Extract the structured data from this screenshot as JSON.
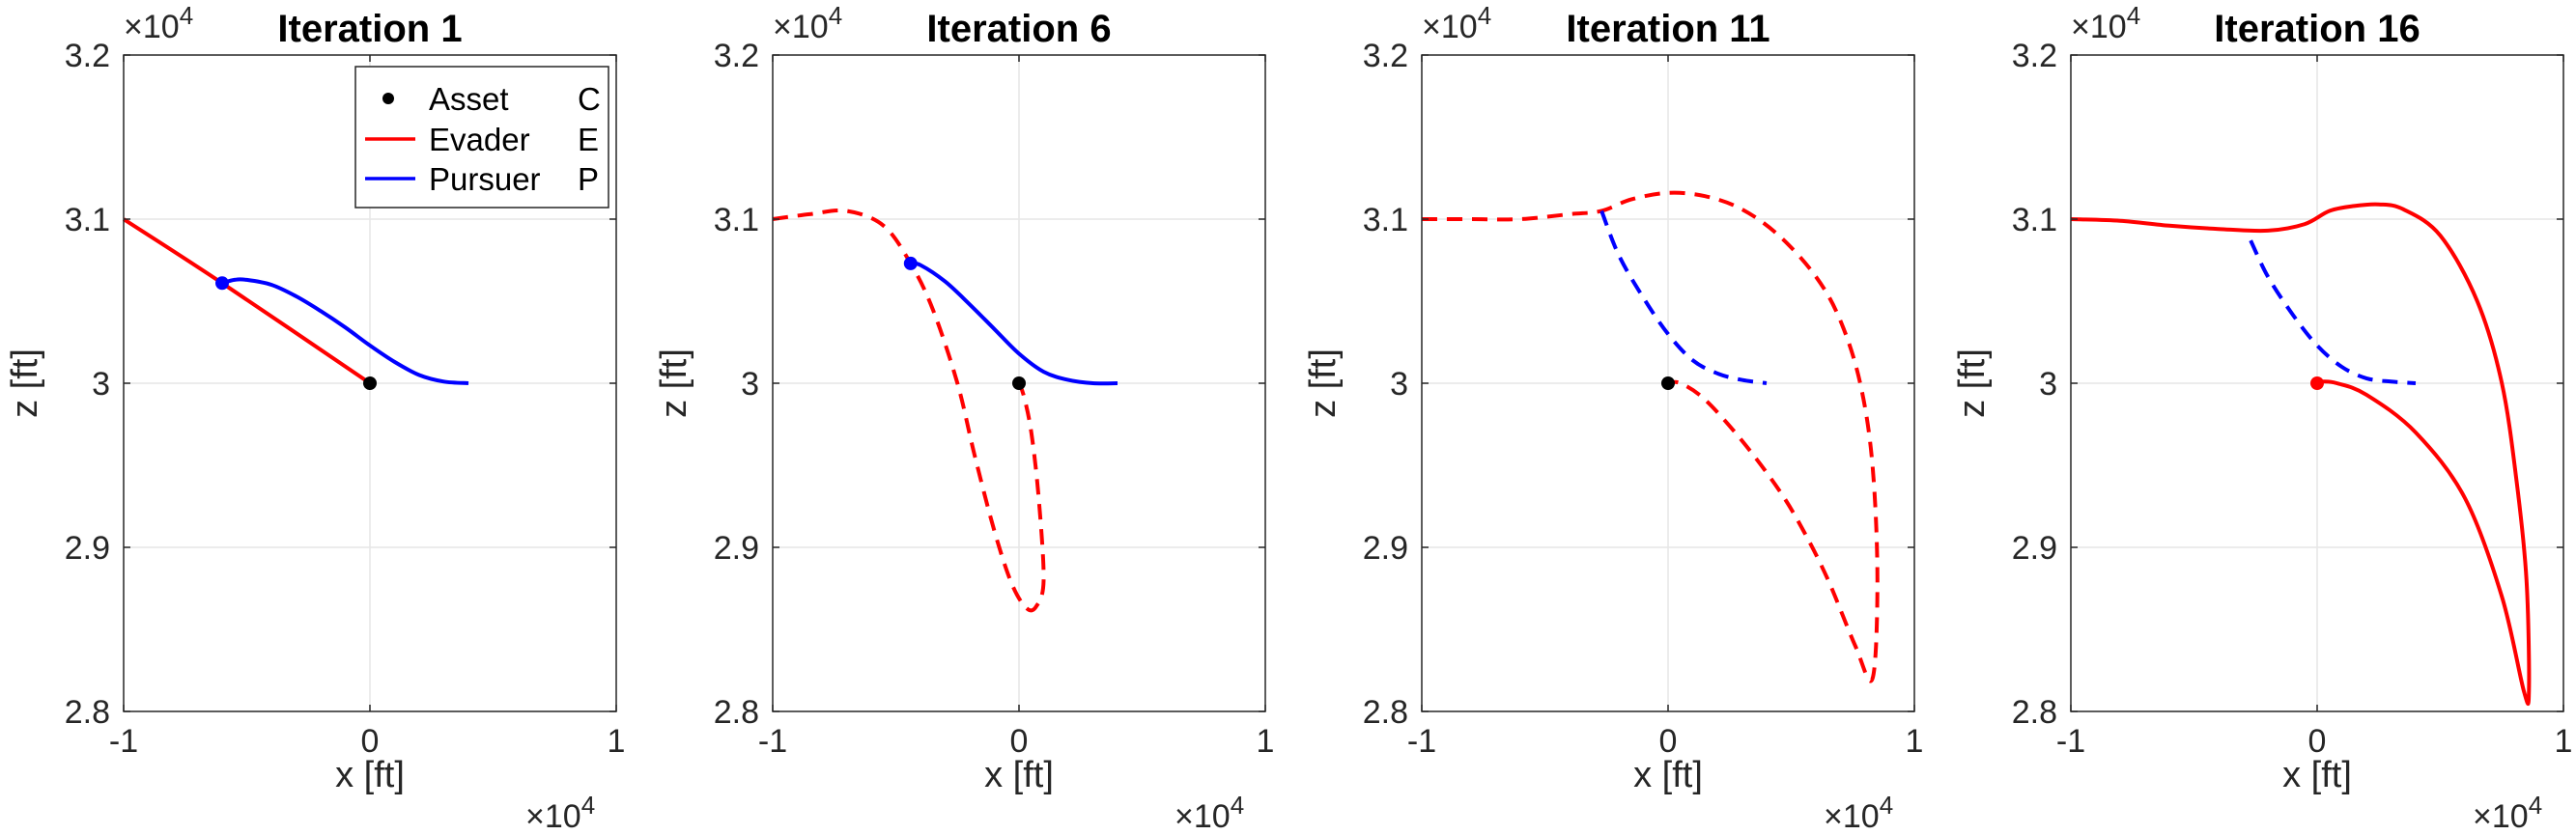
{
  "colors": {
    "evader": "#ff0000",
    "pursuer": "#0000ff",
    "asset": "#000000",
    "grid": "#e6e6e6",
    "axis": "#262626"
  },
  "chart_data": [
    {
      "type": "line",
      "title": "Iteration 1",
      "xlabel": "x [ft]",
      "ylabel": "z [ft]",
      "xlim": [
        -10000,
        10000
      ],
      "ylim": [
        28000,
        32000
      ],
      "x_ticks": [
        -10000,
        0,
        10000
      ],
      "x_tick_labels": [
        "-1",
        "0",
        "1"
      ],
      "y_ticks": [
        28000,
        29000,
        30000,
        31000,
        32000
      ],
      "y_tick_labels": [
        "2.8",
        "2.9",
        "3",
        "3.1",
        "3.2"
      ],
      "x_exponent": "×10",
      "x_exponent_power": "4",
      "y_exponent": "×10",
      "y_exponent_power": "4",
      "grid": true,
      "legend": {
        "position": "top-right",
        "entries": [
          {
            "label": "Asset",
            "symbol": "C",
            "style": "marker"
          },
          {
            "label": "Evader",
            "symbol": "E",
            "style": "line-red"
          },
          {
            "label": "Pursuer",
            "symbol": "P",
            "style": "line-blue"
          }
        ]
      },
      "asset": {
        "x": 0,
        "y": 30000,
        "color": "#000000"
      },
      "series": [
        {
          "name": "Evader E",
          "color": "#ff0000",
          "dashed": false,
          "x": [
            -10000,
            -6000,
            0
          ],
          "y": [
            31000,
            30610,
            30000
          ]
        },
        {
          "name": "Pursuer P",
          "color": "#0000ff",
          "dashed": false,
          "x": [
            -6000,
            -5500,
            -5000,
            -4000,
            -3000,
            -2000,
            -1000,
            0,
            1000,
            2000,
            3000,
            4000
          ],
          "y": [
            30610,
            30630,
            30630,
            30600,
            30530,
            30440,
            30340,
            30230,
            30130,
            30050,
            30010,
            30000
          ]
        }
      ],
      "markers": [
        {
          "x": -6000,
          "y": 30610,
          "color": "#0000ff"
        }
      ]
    },
    {
      "type": "line",
      "title": "Iteration 6",
      "xlabel": "x [ft]",
      "ylabel": "z [ft]",
      "xlim": [
        -10000,
        10000
      ],
      "ylim": [
        28000,
        32000
      ],
      "x_ticks": [
        -10000,
        0,
        10000
      ],
      "x_tick_labels": [
        "-1",
        "0",
        "1"
      ],
      "y_ticks": [
        28000,
        29000,
        30000,
        31000,
        32000
      ],
      "y_tick_labels": [
        "2.8",
        "2.9",
        "3",
        "3.1",
        "3.2"
      ],
      "x_exponent": "×10",
      "x_exponent_power": "4",
      "y_exponent": "×10",
      "y_exponent_power": "4",
      "grid": true,
      "asset": {
        "x": 0,
        "y": 30000,
        "color": "#000000"
      },
      "series": [
        {
          "name": "Evader E",
          "color": "#ff0000",
          "dashed": true,
          "x": [
            -10000,
            -8500,
            -7000,
            -5500,
            -4400,
            -3500,
            -2500,
            -1800,
            -1000,
            -300,
            300,
            700,
            1000,
            800,
            500,
            200,
            0
          ],
          "y": [
            31000,
            31030,
            31050,
            30960,
            30730,
            30450,
            30000,
            29560,
            29100,
            28780,
            28630,
            28640,
            28800,
            29300,
            29700,
            29920,
            30000
          ]
        },
        {
          "name": "Pursuer P",
          "color": "#0000ff",
          "dashed": false,
          "x": [
            -4400,
            -4000,
            -3000,
            -2000,
            -1000,
            0,
            1000,
            2000,
            3000,
            4000
          ],
          "y": [
            30730,
            30720,
            30620,
            30480,
            30330,
            30180,
            30070,
            30020,
            30000,
            30000
          ]
        }
      ],
      "markers": [
        {
          "x": -4400,
          "y": 30730,
          "color": "#0000ff"
        }
      ]
    },
    {
      "type": "line",
      "title": "Iteration 11",
      "xlabel": "x [ft]",
      "ylabel": "z [ft]",
      "xlim": [
        -10000,
        10000
      ],
      "ylim": [
        28000,
        32000
      ],
      "x_ticks": [
        -10000,
        0,
        10000
      ],
      "x_tick_labels": [
        "-1",
        "0",
        "1"
      ],
      "y_ticks": [
        28000,
        29000,
        30000,
        31000,
        32000
      ],
      "y_tick_labels": [
        "2.8",
        "2.9",
        "3",
        "3.1",
        "3.2"
      ],
      "x_exponent": "×10",
      "x_exponent_power": "4",
      "y_exponent": "×10",
      "y_exponent_power": "4",
      "grid": true,
      "asset": {
        "x": 0,
        "y": 30000,
        "color": "#000000"
      },
      "series": [
        {
          "name": "Evader E",
          "color": "#ff0000",
          "dashed": true,
          "x": [
            -10000,
            -8000,
            -6000,
            -4000,
            -2700,
            -1500,
            0,
            1500,
            3000,
            4500,
            6000,
            7000,
            7800,
            8300,
            8500,
            8300,
            7600,
            6500,
            5500,
            4500,
            3000,
            1500,
            500,
            0
          ],
          "y": [
            31000,
            31000,
            31000,
            31030,
            31050,
            31120,
            31160,
            31140,
            31060,
            30900,
            30650,
            30380,
            30000,
            29500,
            28800,
            28200,
            28400,
            28800,
            29100,
            29350,
            29650,
            29900,
            30000,
            30000
          ]
        },
        {
          "name": "Pursuer P",
          "color": "#0000ff",
          "dashed": true,
          "x": [
            -2700,
            -2000,
            -1000,
            0,
            1000,
            2000,
            3000,
            4000
          ],
          "y": [
            31050,
            30780,
            30520,
            30300,
            30140,
            30060,
            30020,
            30000
          ]
        }
      ],
      "markers": []
    },
    {
      "type": "line",
      "title": "Iteration 16",
      "xlabel": "x [ft]",
      "ylabel": "z [ft]",
      "xlim": [
        -10000,
        10000
      ],
      "ylim": [
        28000,
        32000
      ],
      "x_ticks": [
        -10000,
        0,
        10000
      ],
      "x_tick_labels": [
        "-1",
        "0",
        "1"
      ],
      "y_ticks": [
        28000,
        29000,
        30000,
        31000,
        32000
      ],
      "y_tick_labels": [
        "2.8",
        "2.9",
        "3",
        "3.1",
        "3.2"
      ],
      "x_exponent": "×10",
      "x_exponent_power": "4",
      "y_exponent": "×10",
      "y_exponent_power": "4",
      "grid": true,
      "asset": {
        "x": 0,
        "y": 30000,
        "color": "#ff0000"
      },
      "series": [
        {
          "name": "Evader E",
          "color": "#ff0000",
          "dashed": false,
          "x": [
            -10000,
            -8000,
            -6000,
            -4000,
            -2000,
            -500,
            500,
            1500,
            2500,
            3500,
            5000,
            6500,
            7500,
            8100,
            8500,
            8600,
            8400,
            7500,
            6000,
            4000,
            2000,
            800,
            200,
            0
          ],
          "y": [
            31000,
            30990,
            30960,
            30940,
            30930,
            30970,
            31050,
            31080,
            31090,
            31060,
            30900,
            30500,
            30000,
            29400,
            28800,
            28130,
            28120,
            28700,
            29300,
            29700,
            29930,
            30000,
            30010,
            30000
          ]
        },
        {
          "name": "Pursuer P",
          "color": "#0000ff",
          "dashed": true,
          "x": [
            -2700,
            -2000,
            -1000,
            0,
            1000,
            2000,
            3000,
            4000
          ],
          "y": [
            30870,
            30650,
            30420,
            30230,
            30100,
            30030,
            30010,
            30000
          ]
        }
      ],
      "markers": []
    }
  ]
}
